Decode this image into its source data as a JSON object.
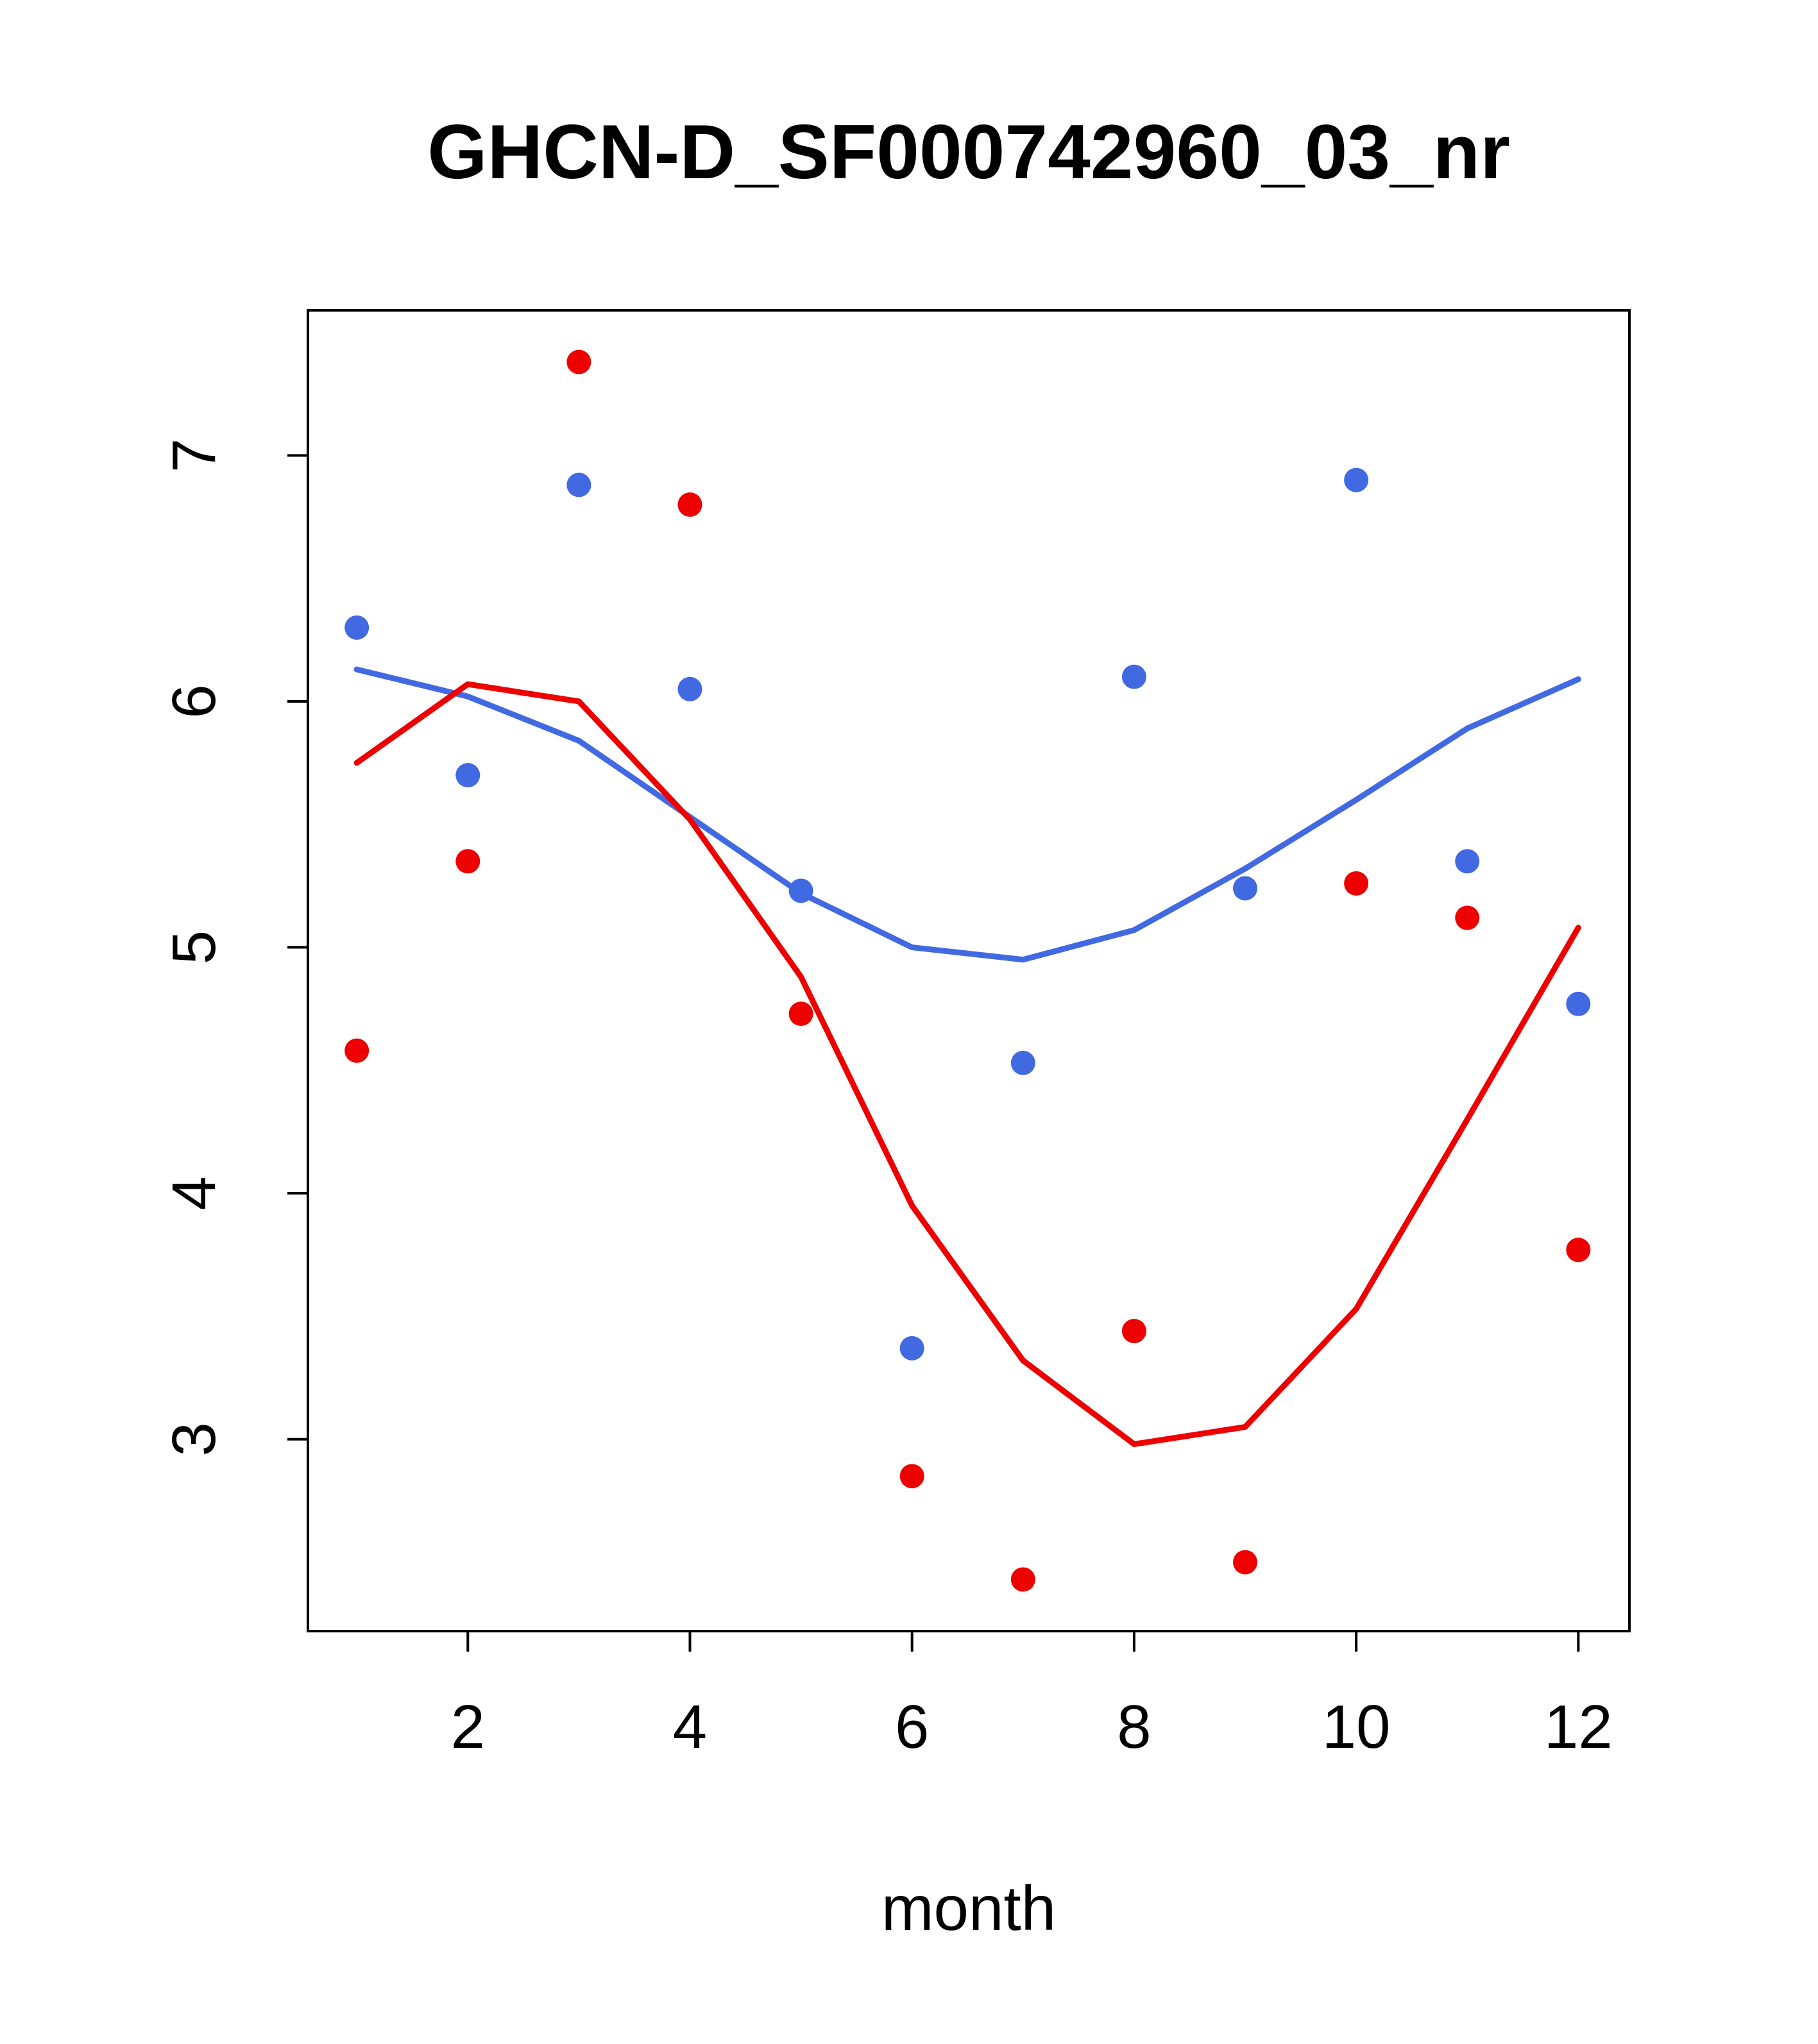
{
  "chart_data": {
    "type": "scatter",
    "title": "GHCN-D_SF000742960_03_nr",
    "xlabel": "month",
    "ylabel": "",
    "xlim": [
      0.56,
      12.46
    ],
    "ylim": [
      2.22,
      7.59
    ],
    "xticks": [
      2,
      4,
      6,
      8,
      10,
      12
    ],
    "yticks": [
      3,
      4,
      5,
      6,
      7
    ],
    "grid": false,
    "legend": "none",
    "colors": {
      "blue": "#4169E1",
      "red": "#EE0000",
      "axis": "#000000"
    },
    "series": [
      {
        "name": "blue_points",
        "kind": "points",
        "color": "#4169E1",
        "x": [
          1,
          2,
          3,
          4,
          5,
          6,
          7,
          8,
          9,
          10,
          11,
          12
        ],
        "y": [
          6.3,
          5.7,
          6.88,
          6.05,
          5.23,
          3.37,
          4.53,
          6.1,
          5.24,
          6.9,
          5.35,
          4.77
        ]
      },
      {
        "name": "red_points",
        "kind": "points",
        "color": "#EE0000",
        "x": [
          1,
          2,
          3,
          4,
          5,
          6,
          7,
          8,
          9,
          10,
          11,
          12
        ],
        "y": [
          4.58,
          5.35,
          7.38,
          6.8,
          4.73,
          2.85,
          2.43,
          3.44,
          2.5,
          5.26,
          5.12,
          3.77
        ]
      },
      {
        "name": "blue_line",
        "kind": "line",
        "color": "#4169E1",
        "x": [
          1,
          2,
          3,
          4,
          5,
          6,
          7,
          8,
          9,
          10,
          11,
          12
        ],
        "y": [
          6.13,
          6.02,
          5.84,
          5.53,
          5.22,
          5.0,
          4.95,
          5.07,
          5.32,
          5.6,
          5.89,
          6.09
        ]
      },
      {
        "name": "red_line",
        "kind": "line",
        "color": "#EE0000",
        "x": [
          1,
          2,
          3,
          4,
          5,
          6,
          7,
          8,
          9,
          10,
          11,
          12
        ],
        "y": [
          5.75,
          6.07,
          6.0,
          5.52,
          4.88,
          3.95,
          3.32,
          2.98,
          3.05,
          3.53,
          4.3,
          5.08
        ]
      }
    ]
  }
}
